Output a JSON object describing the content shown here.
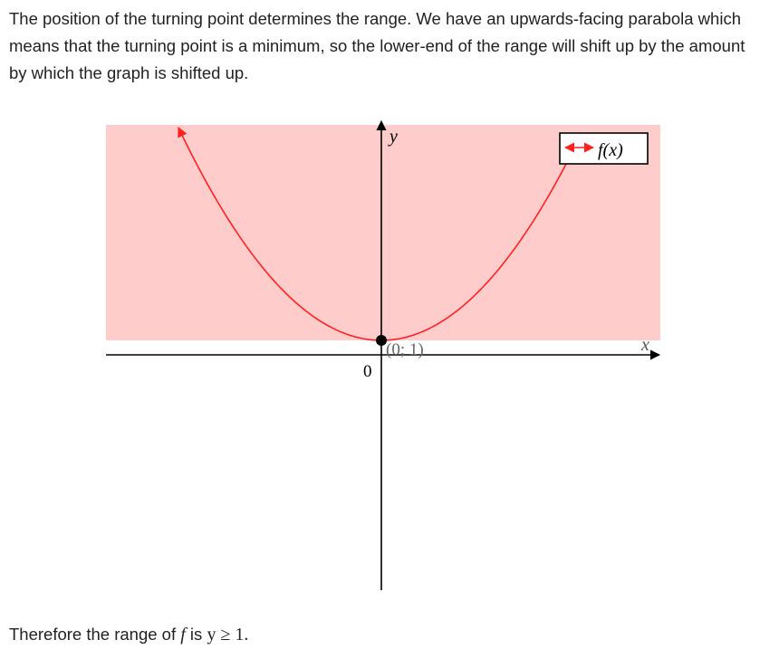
{
  "intro_text": "The position of the turning point determines the range. We have an upwards-facing parabola which means that the turning point is a minimum, so the lower-end of the range will shift up by the amount by which the graph is shifted up.",
  "chart_data": {
    "type": "line",
    "function": "parabola",
    "turning_point": {
      "x": 0,
      "y": 1,
      "label": "(0; 1)"
    },
    "origin_label": "0",
    "xlabel": "x",
    "ylabel": "y",
    "legend": {
      "label": "f(x)",
      "placement": "top-right"
    },
    "shaded_region": "y ≥ 1",
    "colors": {
      "curve": "#ff2020",
      "shading": "#ffcccc",
      "axes": "#000000"
    }
  },
  "conclusion": {
    "prefix": "Therefore the range of",
    "function_symbol": "f",
    "middle": " is ",
    "range_expression": "y ≥ 1."
  }
}
